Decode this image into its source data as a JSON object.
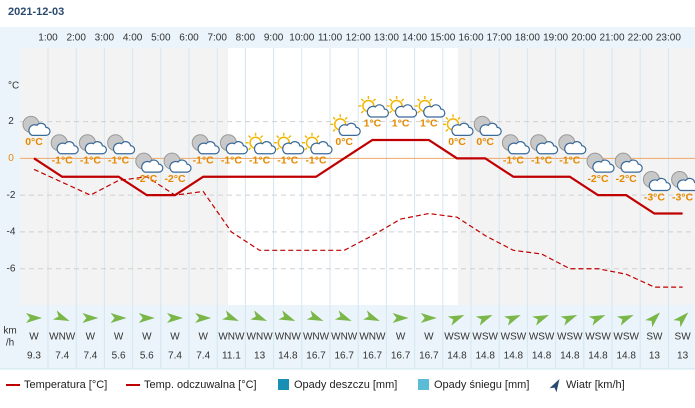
{
  "chart_data": {
    "type": "line",
    "title": "2021-12-03",
    "y_label": "°C",
    "hour_labels": [
      "1:00",
      "2:00",
      "3:00",
      "4:00",
      "5:00",
      "6:00",
      "7:00",
      "8:00",
      "9:00",
      "10:00",
      "11:00",
      "12:00",
      "13:00",
      "14:00",
      "15:00",
      "16:00",
      "17:00",
      "18:00",
      "19:00",
      "20:00",
      "21:00",
      "22:00",
      "23:00"
    ],
    "ylim": [
      -8,
      6
    ],
    "yticks": [
      -6,
      -4,
      -2,
      0,
      2
    ],
    "grid": true,
    "series": [
      {
        "name": "Temperatura [°C]",
        "color": "#c00000",
        "values": [
          0,
          -1,
          -1,
          -1,
          -2,
          -2,
          -1,
          -1,
          -1,
          -1,
          -1,
          0,
          1,
          1,
          1,
          0,
          0,
          -1,
          -1,
          -1,
          -2,
          -2,
          -3,
          -3
        ],
        "value_labels": [
          "0°C",
          "-1°C",
          "-1°C",
          "-1°C",
          "-2°C",
          "-2°C",
          "-1°C",
          "-1°C",
          "-1°C",
          "-1°C",
          "-1°C",
          "0°C",
          "1°C",
          "1°C",
          "1°C",
          "0°C",
          "0°C",
          "-1°C",
          "-1°C",
          "-1°C",
          "-2°C",
          "-2°C",
          "-3°C",
          "-3°C"
        ]
      },
      {
        "name": "Temp. odczuwalna [°C]",
        "color": "#c00000",
        "values": [
          -0.6,
          -1.3,
          -2,
          -1.2,
          -1,
          -2,
          -1.8,
          -4,
          -5,
          -5,
          -5,
          -5,
          -4.2,
          -3.3,
          -3,
          -3.2,
          -4.2,
          -5,
          -5.2,
          -6,
          -6,
          -6.3,
          -7,
          -7
        ]
      },
      {
        "name": "Opady deszczu [mm]",
        "color": "#1a8fb5",
        "values": [
          0,
          0,
          0,
          0,
          0,
          0,
          0,
          0,
          0,
          0,
          0,
          0,
          0,
          0,
          0,
          0,
          0,
          0,
          0,
          0,
          0,
          0,
          0,
          0
        ]
      },
      {
        "name": "Opady śniegu [mm]",
        "color": "#5bbcd6",
        "values": [
          0,
          0,
          0,
          0,
          0,
          0,
          0,
          0,
          0,
          0,
          0,
          0,
          0,
          0,
          0,
          0,
          0,
          0,
          0,
          0,
          0,
          0,
          0,
          0
        ]
      }
    ],
    "wind": {
      "name": "Wiatr [km/h]",
      "unit_label": [
        "km",
        "/h"
      ],
      "color": "#7ab648",
      "directions": [
        "W",
        "WNW",
        "W",
        "W",
        "W",
        "W",
        "W",
        "WNW",
        "WNW",
        "WNW",
        "WNW",
        "WNW",
        "WNW",
        "W",
        "W",
        "WSW",
        "WSW",
        "WSW",
        "WSW",
        "WSW",
        "WSW",
        "WSW",
        "SW",
        "SW"
      ],
      "speeds": [
        9.3,
        7.4,
        7.4,
        5.6,
        5.6,
        7.4,
        7.4,
        11.1,
        13,
        14.8,
        16.7,
        16.7,
        16.7,
        16.7,
        16.7,
        14.8,
        14.8,
        14.8,
        14.8,
        14.8,
        14.8,
        14.8,
        13,
        13
      ]
    }
  }
}
